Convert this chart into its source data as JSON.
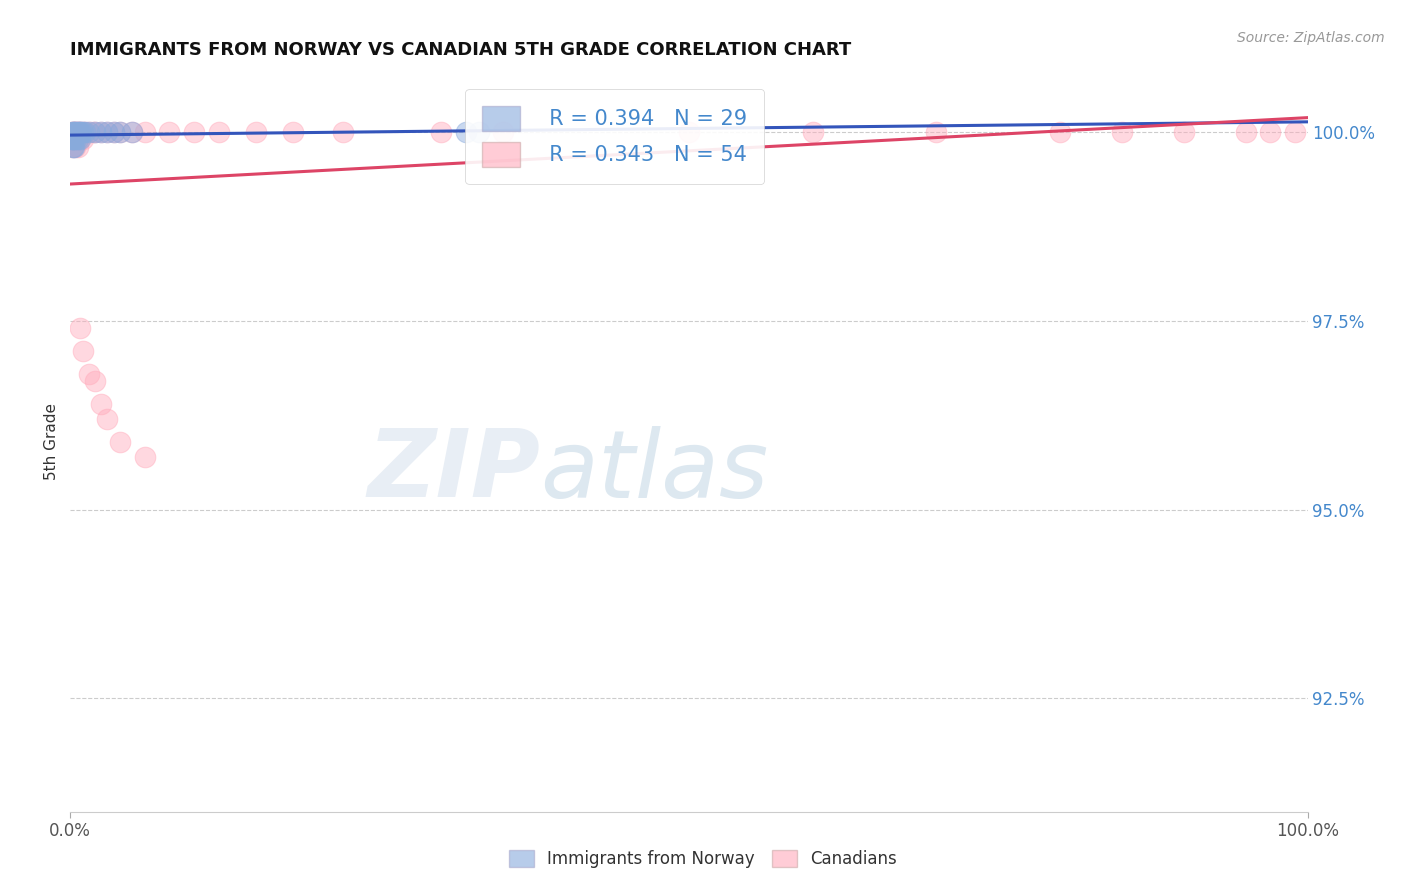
{
  "title": "IMMIGRANTS FROM NORWAY VS CANADIAN 5TH GRADE CORRELATION CHART",
  "source_text": "Source: ZipAtlas.com",
  "ylabel": "5th Grade",
  "xlim": [
    0.0,
    1.0
  ],
  "ylim": [
    0.91,
    1.008
  ],
  "ytick_labels": [
    "92.5%",
    "95.0%",
    "97.5%",
    "100.0%"
  ],
  "ytick_values": [
    0.925,
    0.95,
    0.975,
    1.0
  ],
  "xtick_labels": [
    "0.0%",
    "100.0%"
  ],
  "xtick_values": [
    0.0,
    1.0
  ],
  "legend_blue_text": "R = 0.394   N = 29",
  "legend_pink_text": "R = 0.343   N = 54",
  "blue_color": "#88aadd",
  "pink_color": "#ffaabb",
  "blue_line_color": "#3355bb",
  "pink_line_color": "#dd4466",
  "norway_x": [
    0.001,
    0.001,
    0.001,
    0.002,
    0.002,
    0.002,
    0.003,
    0.003,
    0.003,
    0.004,
    0.005,
    0.005,
    0.006,
    0.006,
    0.007,
    0.008,
    0.008,
    0.009,
    0.01,
    0.012,
    0.015,
    0.02,
    0.025,
    0.03,
    0.035,
    0.04,
    0.05,
    0.32,
    0.33
  ],
  "norway_y": [
    1.0,
    0.999,
    0.999,
    1.0,
    0.999,
    0.998,
    1.0,
    0.999,
    0.998,
    1.0,
    1.0,
    0.999,
    1.0,
    0.999,
    1.0,
    1.0,
    0.999,
    1.0,
    1.0,
    1.0,
    1.0,
    1.0,
    1.0,
    1.0,
    1.0,
    1.0,
    1.0,
    1.0,
    1.0
  ],
  "canada_x": [
    0.001,
    0.001,
    0.001,
    0.002,
    0.002,
    0.003,
    0.003,
    0.004,
    0.004,
    0.005,
    0.005,
    0.006,
    0.006,
    0.007,
    0.007,
    0.008,
    0.008,
    0.01,
    0.01,
    0.012,
    0.015,
    0.018,
    0.02,
    0.025,
    0.03,
    0.035,
    0.04,
    0.05,
    0.06,
    0.08,
    0.1,
    0.12,
    0.15,
    0.18,
    0.22,
    0.3,
    0.35,
    0.5,
    0.6,
    0.7,
    0.8,
    0.85,
    0.9,
    0.95,
    0.97,
    0.99,
    0.008,
    0.01,
    0.015,
    0.02,
    0.025,
    0.03,
    0.04,
    0.06
  ],
  "canada_y": [
    1.0,
    0.999,
    0.998,
    1.0,
    0.999,
    1.0,
    0.999,
    1.0,
    0.998,
    1.0,
    0.999,
    1.0,
    0.998,
    1.0,
    0.999,
    1.0,
    0.999,
    1.0,
    0.999,
    1.0,
    1.0,
    1.0,
    1.0,
    1.0,
    1.0,
    1.0,
    1.0,
    1.0,
    1.0,
    1.0,
    1.0,
    1.0,
    1.0,
    1.0,
    1.0,
    1.0,
    1.0,
    1.0,
    1.0,
    1.0,
    1.0,
    1.0,
    1.0,
    1.0,
    1.0,
    1.0,
    0.974,
    0.971,
    0.968,
    0.967,
    0.964,
    0.962,
    0.959,
    0.957
  ],
  "background_color": "#ffffff",
  "grid_color": "#cccccc"
}
